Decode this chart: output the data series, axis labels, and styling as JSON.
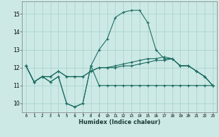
{
  "xlabel": "Humidex (Indice chaleur)",
  "bg_color": "#cce9e5",
  "grid_color": "#aad4cf",
  "line_color": "#1a6b60",
  "xlim": [
    -0.5,
    23.5
  ],
  "ylim": [
    9.5,
    15.7
  ],
  "yticks": [
    10,
    11,
    12,
    13,
    14,
    15
  ],
  "xticks": [
    0,
    1,
    2,
    3,
    4,
    5,
    6,
    7,
    8,
    9,
    10,
    11,
    12,
    13,
    14,
    15,
    16,
    17,
    18,
    19,
    20,
    21,
    22,
    23
  ],
  "series1_x": [
    0,
    1,
    2,
    3,
    4,
    5,
    6,
    7,
    8,
    9,
    10,
    11,
    12,
    13,
    14,
    15,
    16,
    17,
    18,
    19,
    20,
    21,
    22,
    23
  ],
  "series1_y": [
    12.1,
    11.2,
    11.5,
    11.2,
    11.5,
    10.0,
    9.8,
    10.0,
    12.1,
    11.0,
    11.0,
    11.0,
    11.0,
    11.0,
    11.0,
    11.0,
    11.0,
    11.0,
    11.0,
    11.0,
    11.0,
    11.0,
    11.0,
    11.0
  ],
  "series2_x": [
    0,
    1,
    2,
    3,
    4,
    5,
    6,
    7,
    8,
    9,
    10,
    11,
    12,
    13,
    14,
    15,
    16,
    17,
    18,
    19,
    20,
    21,
    22,
    23
  ],
  "series2_y": [
    12.1,
    11.2,
    11.5,
    11.2,
    11.5,
    10.0,
    9.8,
    10.0,
    12.1,
    13.0,
    13.6,
    14.8,
    15.1,
    15.2,
    15.2,
    14.5,
    13.0,
    12.5,
    12.5,
    12.1,
    12.1,
    11.8,
    11.5,
    11.0
  ],
  "series3_x": [
    0,
    1,
    2,
    3,
    4,
    5,
    6,
    7,
    8,
    9,
    10,
    11,
    12,
    13,
    14,
    15,
    16,
    17,
    18,
    19,
    20,
    21,
    22,
    23
  ],
  "series3_y": [
    12.1,
    11.2,
    11.5,
    11.5,
    11.8,
    11.5,
    11.5,
    11.5,
    11.8,
    12.0,
    12.0,
    12.1,
    12.2,
    12.3,
    12.4,
    12.5,
    12.5,
    12.6,
    12.5,
    12.1,
    12.1,
    11.8,
    11.5,
    11.0
  ],
  "series4_x": [
    0,
    1,
    2,
    3,
    4,
    5,
    6,
    7,
    8,
    9,
    10,
    11,
    12,
    13,
    14,
    15,
    16,
    17,
    18,
    19,
    20,
    21,
    22,
    23
  ],
  "series4_y": [
    12.1,
    11.2,
    11.5,
    11.5,
    11.8,
    11.5,
    11.5,
    11.5,
    11.8,
    12.0,
    12.0,
    12.0,
    12.1,
    12.1,
    12.2,
    12.3,
    12.4,
    12.4,
    12.5,
    12.1,
    12.1,
    11.8,
    11.5,
    11.0
  ]
}
